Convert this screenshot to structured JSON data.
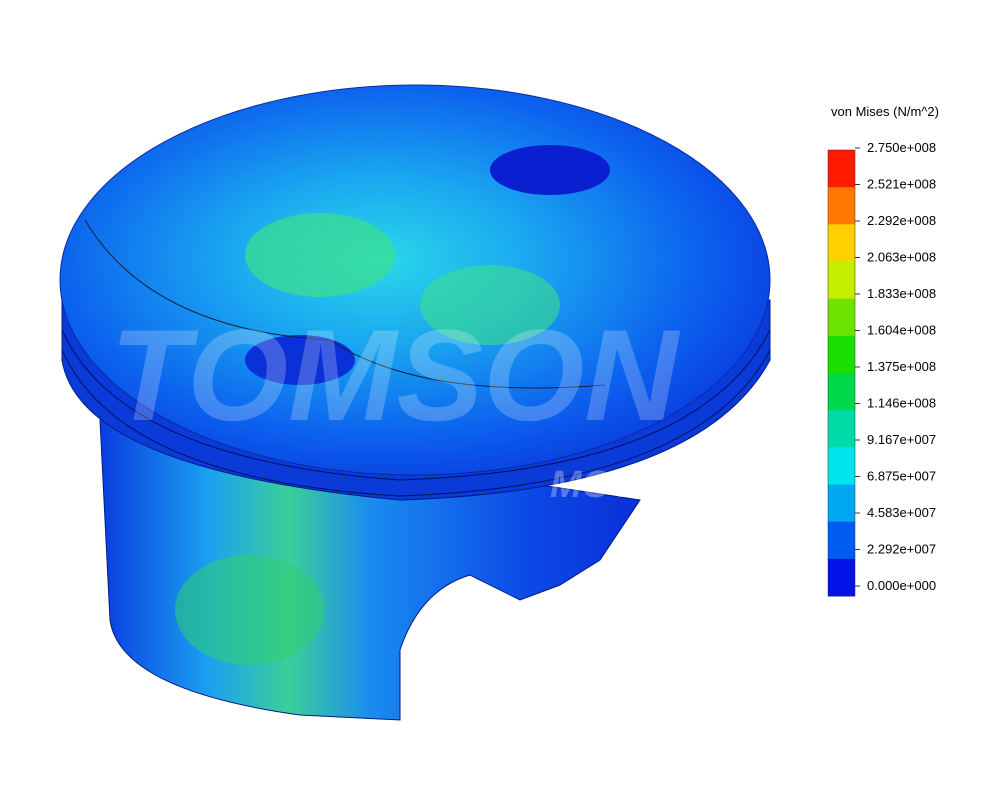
{
  "legend": {
    "title": "von Mises (N/m^2)",
    "labels": [
      "2.750e+008",
      "2.521e+008",
      "2.292e+008",
      "2.063e+008",
      "1.833e+008",
      "1.604e+008",
      "1.375e+008",
      "1.146e+008",
      "9.167e+007",
      "6.875e+007",
      "4.583e+007",
      "2.292e+007",
      "0.000e+000"
    ],
    "colors": [
      "#ff1a00",
      "#ff7800",
      "#ffd000",
      "#c4ee00",
      "#6ce400",
      "#1ade00",
      "#00d84c",
      "#00dca8",
      "#00e4ee",
      "#00a8f2",
      "#005cf0",
      "#0012e6"
    ]
  },
  "watermark": {
    "brand": "TOMSON",
    "sub": "MOTORSPORT"
  }
}
